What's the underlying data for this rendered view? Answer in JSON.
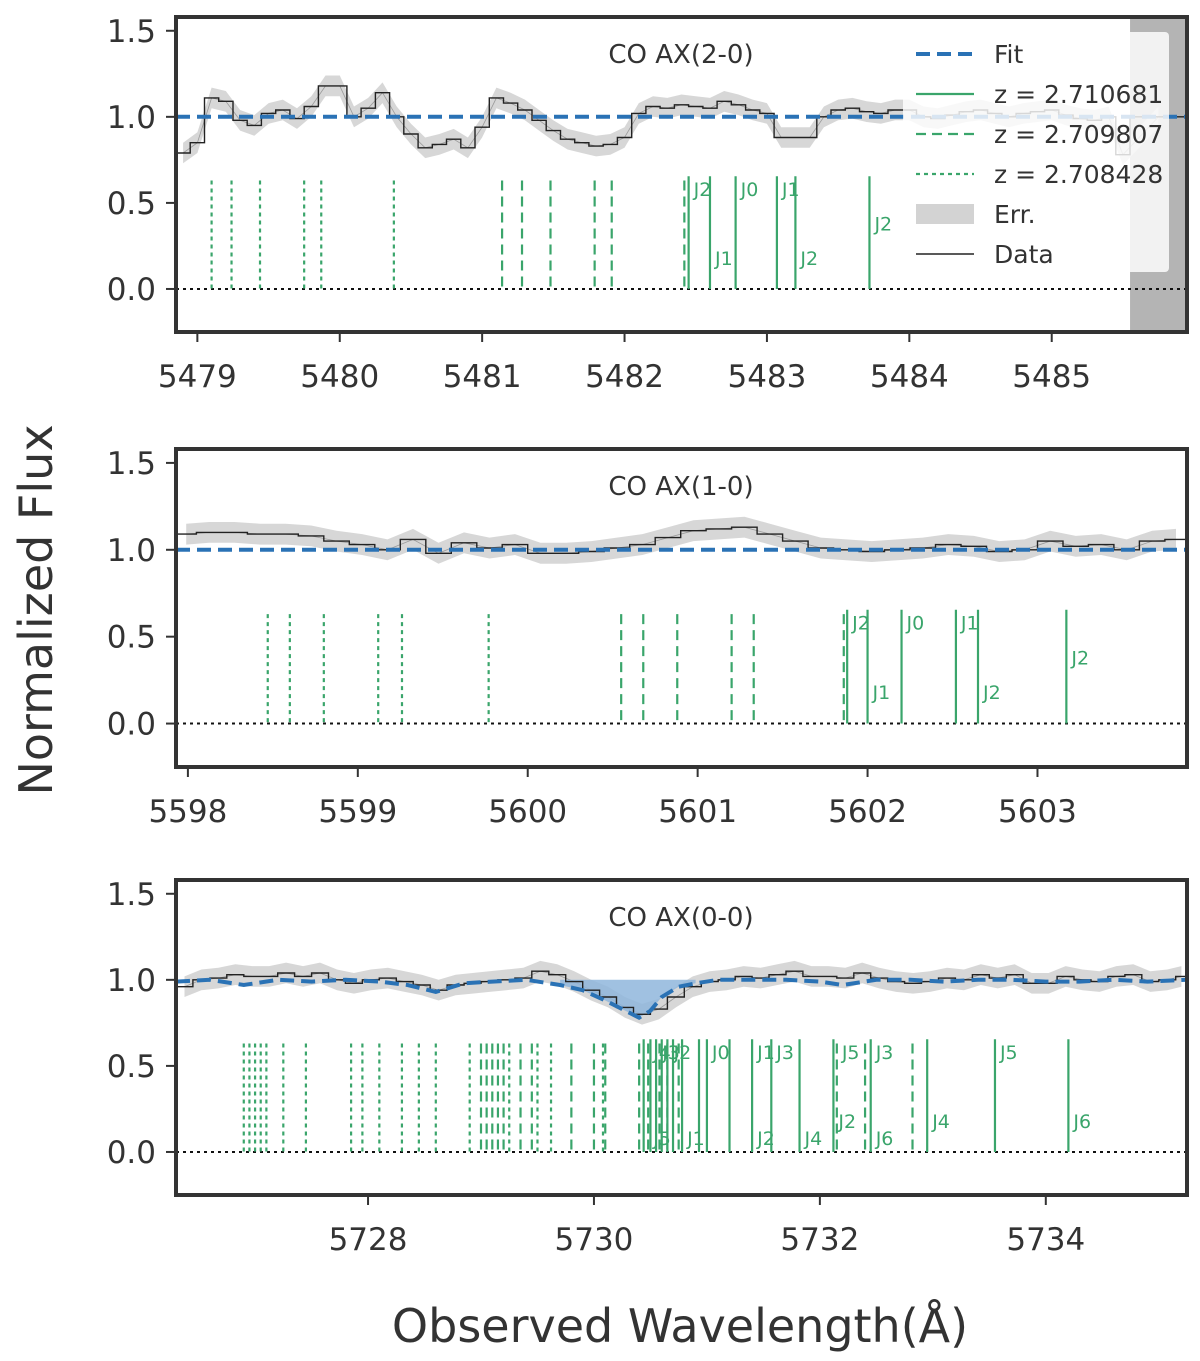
{
  "figure": {
    "ylabel": "Normalized Flux",
    "xlabel": "Observed Wavelength(Å)"
  },
  "colors": {
    "fit": "#2a72b5",
    "lines": "#3aa56b",
    "data": "#222222",
    "err": "#d3d3d3",
    "frame": "#333333",
    "fill": "#8fb6dc",
    "mask": "#b4b4b4"
  },
  "legend": {
    "entries": [
      {
        "label": "Fit",
        "style": "fit"
      },
      {
        "label": "z = 2.710681",
        "style": "solid"
      },
      {
        "label": "z = 2.709807",
        "style": "dashed"
      },
      {
        "label": "z = 2.708428",
        "style": "dotted"
      },
      {
        "label": "Err.",
        "style": "err"
      },
      {
        "label": "Data",
        "style": "data"
      }
    ]
  },
  "chart_data": [
    {
      "type": "line",
      "title": "CO  AX(2-0)",
      "xlim": [
        5478.85,
        5485.95
      ],
      "ylim": [
        -0.25,
        1.58
      ],
      "xticks": [
        5479,
        5480,
        5481,
        5482,
        5483,
        5484,
        5485
      ],
      "yticks": [
        0.0,
        0.5,
        1.0,
        1.5
      ],
      "ytick_labels": [
        "0.0",
        "0.5",
        "1.0",
        "1.5"
      ],
      "masked_region": [
        5485.55,
        5485.95
      ],
      "data_step": {
        "x": [
          5478.85,
          5478.95,
          5479.05,
          5479.15,
          5479.25,
          5479.35,
          5479.45,
          5479.55,
          5479.65,
          5479.75,
          5479.85,
          5479.95,
          5480.05,
          5480.15,
          5480.25,
          5480.35,
          5480.45,
          5480.55,
          5480.65,
          5480.75,
          5480.85,
          5480.95,
          5481.05,
          5481.15,
          5481.25,
          5481.35,
          5481.45,
          5481.55,
          5481.65,
          5481.75,
          5481.85,
          5481.95,
          5482.05,
          5482.15,
          5482.25,
          5482.35,
          5482.45,
          5482.55,
          5482.65,
          5482.75,
          5482.85,
          5482.95,
          5483.05,
          5483.15,
          5483.25,
          5483.35,
          5483.45,
          5483.55,
          5483.65,
          5483.75,
          5483.85,
          5483.95,
          5484.05,
          5484.15,
          5484.25,
          5484.35,
          5484.45,
          5484.55,
          5484.65,
          5484.75,
          5484.85,
          5484.95,
          5485.05,
          5485.15,
          5485.25,
          5485.35,
          5485.45,
          5485.55
        ],
        "y": [
          0.79,
          0.85,
          1.11,
          1.09,
          0.98,
          0.95,
          1.02,
          1.04,
          0.99,
          1.06,
          1.18,
          1.18,
          1.0,
          1.05,
          1.14,
          1.0,
          0.9,
          0.82,
          0.84,
          0.87,
          0.82,
          0.94,
          1.11,
          1.08,
          1.04,
          0.98,
          0.92,
          0.87,
          0.85,
          0.83,
          0.84,
          0.88,
          1.02,
          1.06,
          1.05,
          1.07,
          1.06,
          1.05,
          1.09,
          1.07,
          1.04,
          1.02,
          0.88,
          0.88,
          0.88,
          1.0,
          1.04,
          1.05,
          1.03,
          1.02,
          1.04,
          1.04,
          1.0,
          0.99,
          1.01,
          1.03,
          1.04,
          1.02,
          1.0,
          1.02,
          1.03,
          1.04,
          1.01,
          0.99,
          0.98,
          1.0,
          0.78,
          1.0
        ]
      },
      "fit": {
        "x": [
          5478.85,
          5485.95
        ],
        "y": [
          1.0,
          1.0
        ]
      },
      "lines": {
        "z = 2.710681": [
          5482.45,
          5482.6,
          5482.78,
          5483.07,
          5483.2,
          5483.72
        ],
        "z = 2.709807": [
          5481.14,
          5481.28,
          5481.48,
          5481.79,
          5481.91,
          5482.42
        ],
        "z = 2.708428": [
          5479.1,
          5479.24,
          5479.44,
          5479.75,
          5479.87,
          5480.38
        ]
      },
      "line_labels": [
        {
          "text": "J2",
          "x": 5482.45,
          "y": 0.54
        },
        {
          "text": "J1",
          "x": 5482.6,
          "y": 0.14
        },
        {
          "text": "J0",
          "x": 5482.78,
          "y": 0.54
        },
        {
          "text": "J1",
          "x": 5483.07,
          "y": 0.54
        },
        {
          "text": "J2",
          "x": 5483.2,
          "y": 0.14
        },
        {
          "text": "J2",
          "x": 5483.72,
          "y": 0.34
        }
      ]
    },
    {
      "type": "line",
      "title": "CO  AX(1-0)",
      "xlim": [
        5597.93,
        5603.88
      ],
      "ylim": [
        -0.25,
        1.58
      ],
      "xticks": [
        5598,
        5599,
        5600,
        5601,
        5602,
        5603
      ],
      "yticks": [
        0.0,
        0.5,
        1.0,
        1.5
      ],
      "ytick_labels": [
        "0.0",
        "0.5",
        "1.0",
        "1.5"
      ],
      "data_step": {
        "x": [
          5597.93,
          5598.05,
          5598.2,
          5598.35,
          5598.5,
          5598.65,
          5598.8,
          5598.95,
          5599.1,
          5599.25,
          5599.4,
          5599.55,
          5599.7,
          5599.85,
          5600.0,
          5600.15,
          5600.3,
          5600.45,
          5600.6,
          5600.75,
          5600.9,
          5601.05,
          5601.2,
          5601.35,
          5601.5,
          5601.65,
          5601.8,
          5601.95,
          5602.1,
          5602.25,
          5602.4,
          5602.55,
          5602.7,
          5602.85,
          5603.0,
          5603.15,
          5603.3,
          5603.45,
          5603.6,
          5603.75
        ],
        "y": [
          1.09,
          1.1,
          1.1,
          1.09,
          1.09,
          1.08,
          1.05,
          1.03,
          1.0,
          1.06,
          0.98,
          1.04,
          1.01,
          1.03,
          0.98,
          0.98,
          0.99,
          1.01,
          1.03,
          1.07,
          1.11,
          1.12,
          1.13,
          1.09,
          1.05,
          1.01,
          1.0,
          0.99,
          1.0,
          1.01,
          1.03,
          1.02,
          0.99,
          1.0,
          1.05,
          1.02,
          1.03,
          1.0,
          1.05,
          1.06
        ]
      },
      "fit": {
        "x": [
          5597.93,
          5603.88
        ],
        "y": [
          1.0,
          1.0
        ]
      },
      "lines": {
        "z = 2.710681": [
          5601.88,
          5602.0,
          5602.2,
          5602.52,
          5602.65,
          5603.17
        ],
        "z = 2.709807": [
          5600.55,
          5600.68,
          5600.88,
          5601.2,
          5601.33,
          5601.86
        ],
        "z = 2.708428": [
          5598.47,
          5598.6,
          5598.8,
          5599.12,
          5599.26,
          5599.77
        ]
      },
      "line_labels": [
        {
          "text": "J2",
          "x": 5601.88,
          "y": 0.54
        },
        {
          "text": "J1",
          "x": 5602.0,
          "y": 0.14
        },
        {
          "text": "J0",
          "x": 5602.2,
          "y": 0.54
        },
        {
          "text": "J1",
          "x": 5602.52,
          "y": 0.54
        },
        {
          "text": "J2",
          "x": 5602.65,
          "y": 0.14
        },
        {
          "text": "J2",
          "x": 5603.17,
          "y": 0.34
        }
      ]
    },
    {
      "type": "line",
      "title": "CO  AX(0-0)",
      "xlim": [
        5726.3,
        5735.25
      ],
      "ylim": [
        -0.25,
        1.58
      ],
      "xticks": [
        5728,
        5730,
        5732,
        5734
      ],
      "yticks": [
        0.0,
        0.5,
        1.0,
        1.5
      ],
      "ytick_labels": [
        "0.0",
        "0.5",
        "1.0",
        "1.5"
      ],
      "data_step": {
        "x": [
          5726.3,
          5726.45,
          5726.6,
          5726.75,
          5726.9,
          5727.05,
          5727.2,
          5727.35,
          5727.5,
          5727.65,
          5727.8,
          5727.95,
          5728.1,
          5728.25,
          5728.4,
          5728.55,
          5728.7,
          5728.85,
          5729.0,
          5729.15,
          5729.3,
          5729.45,
          5729.6,
          5729.75,
          5729.9,
          5730.05,
          5730.2,
          5730.35,
          5730.5,
          5730.65,
          5730.8,
          5730.95,
          5731.1,
          5731.25,
          5731.4,
          5731.55,
          5731.7,
          5731.85,
          5732.0,
          5732.15,
          5732.3,
          5732.45,
          5732.6,
          5732.75,
          5732.9,
          5733.05,
          5733.2,
          5733.35,
          5733.5,
          5733.65,
          5733.8,
          5733.95,
          5734.1,
          5734.25,
          5734.4,
          5734.55,
          5734.7,
          5734.85,
          5735.0,
          5735.15
        ],
        "y": [
          0.96,
          1.0,
          1.01,
          1.03,
          1.02,
          1.02,
          1.04,
          1.02,
          1.04,
          1.0,
          0.98,
          1.0,
          1.01,
          0.99,
          0.97,
          0.94,
          0.97,
          0.98,
          0.99,
          1.0,
          1.01,
          1.05,
          1.03,
          0.99,
          0.94,
          0.9,
          0.84,
          0.8,
          0.83,
          0.9,
          0.96,
          0.99,
          1.0,
          1.02,
          1.01,
          1.03,
          1.05,
          1.02,
          1.02,
          1.01,
          1.04,
          1.01,
          0.99,
          0.98,
          0.99,
          1.01,
          1.0,
          1.03,
          1.01,
          1.03,
          0.98,
          0.98,
          1.02,
          1.0,
          0.99,
          1.02,
          1.03,
          0.99,
          1.0,
          1.02
        ]
      },
      "fit": {
        "x": [
          5726.3,
          5726.6,
          5726.9,
          5727.2,
          5727.5,
          5727.8,
          5728.1,
          5728.35,
          5728.6,
          5728.85,
          5729.1,
          5729.4,
          5729.7,
          5729.9,
          5730.1,
          5730.25,
          5730.4,
          5730.5,
          5730.6,
          5730.75,
          5730.9,
          5731.1,
          5731.4,
          5731.7,
          5732.0,
          5732.2,
          5732.5,
          5732.8,
          5733.1,
          5733.4,
          5733.7,
          5734.0,
          5734.3,
          5734.6,
          5734.9,
          5735.25
        ],
        "y": [
          0.99,
          1.0,
          0.97,
          1.0,
          0.99,
          1.0,
          0.99,
          0.97,
          0.93,
          0.98,
          0.99,
          1.0,
          0.97,
          0.94,
          0.88,
          0.83,
          0.78,
          0.82,
          0.9,
          0.96,
          0.98,
          1.0,
          1.0,
          1.0,
          0.99,
          0.97,
          1.0,
          1.0,
          0.99,
          1.0,
          1.0,
          0.99,
          0.99,
          1.0,
          0.99,
          1.0
        ]
      },
      "absorption_fill": [
        5729.7,
        5730.9
      ],
      "lines": {
        "z = 2.710681": [
          5730.44,
          5730.5,
          5730.55,
          5730.6,
          5730.65,
          5730.7,
          5730.78,
          5730.93,
          5731.0,
          5731.2,
          5731.4,
          5731.57,
          5731.82,
          5732.12,
          5732.45,
          5732.95,
          5733.55,
          5734.2
        ],
        "z = 2.709807": [
          5729.0,
          5729.05,
          5729.1,
          5729.15,
          5729.2,
          5729.35,
          5729.45,
          5729.8,
          5730.0,
          5730.1,
          5730.4,
          5730.48,
          5730.58,
          5730.65,
          5730.75,
          5732.15,
          5732.4,
          5732.82
        ],
        "z = 2.708428": [
          5726.9,
          5726.95,
          5727.0,
          5727.05,
          5727.1,
          5727.25,
          5727.45,
          5727.85,
          5727.95,
          5728.1,
          5728.3,
          5728.45,
          5728.6,
          5728.9,
          5729.25,
          5729.5,
          5729.62,
          5730.08
        ]
      },
      "line_labels": [
        {
          "text": "J4",
          "x": 5730.48,
          "y": 0.54
        },
        {
          "text": "J3",
          "x": 5730.56,
          "y": 0.54
        },
        {
          "text": "J2",
          "x": 5730.66,
          "y": 0.54
        },
        {
          "text": "J5",
          "x": 5730.48,
          "y": 0.04
        },
        {
          "text": "J1",
          "x": 5730.78,
          "y": 0.04
        },
        {
          "text": "J0",
          "x": 5731.0,
          "y": 0.54
        },
        {
          "text": "J1",
          "x": 5731.4,
          "y": 0.54
        },
        {
          "text": "J3",
          "x": 5731.57,
          "y": 0.54
        },
        {
          "text": "J2",
          "x": 5731.4,
          "y": 0.04
        },
        {
          "text": "J4",
          "x": 5731.82,
          "y": 0.04
        },
        {
          "text": "J2",
          "x": 5732.12,
          "y": 0.14
        },
        {
          "text": "J5",
          "x": 5732.15,
          "y": 0.54
        },
        {
          "text": "J3",
          "x": 5732.45,
          "y": 0.54
        },
        {
          "text": "J6",
          "x": 5732.45,
          "y": 0.04
        },
        {
          "text": "J4",
          "x": 5732.95,
          "y": 0.14
        },
        {
          "text": "J5",
          "x": 5733.55,
          "y": 0.54
        },
        {
          "text": "J6",
          "x": 5734.2,
          "y": 0.14
        }
      ]
    }
  ]
}
